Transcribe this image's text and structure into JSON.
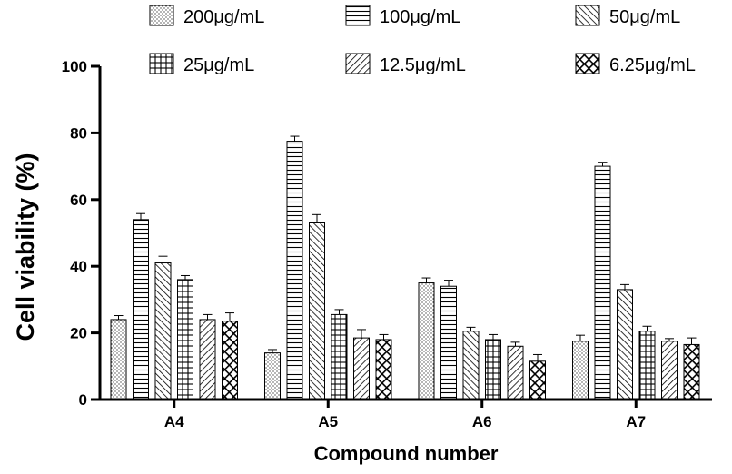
{
  "chart_data": {
    "type": "bar",
    "xlabel": "Compound number",
    "ylabel": "Cell viability (%)",
    "categories": [
      "A4",
      "A5",
      "A6",
      "A7"
    ],
    "ylim": [
      0,
      100
    ],
    "yticks": [
      "0",
      "20",
      "40",
      "60",
      "80",
      "100"
    ],
    "legend_position": "top",
    "series": [
      {
        "name": "200μg/mL",
        "pattern": "dots",
        "values": [
          24,
          14,
          35,
          17.5
        ],
        "errors": [
          1.2,
          1,
          1.5,
          1.8
        ]
      },
      {
        "name": "100μg/mL",
        "pattern": "hlines",
        "values": [
          54,
          77.5,
          34,
          70
        ],
        "errors": [
          1.8,
          1.5,
          1.8,
          1.2
        ]
      },
      {
        "name": "50μg/mL",
        "pattern": "diagonal",
        "values": [
          41,
          53,
          20.5,
          33
        ],
        "errors": [
          2,
          2.5,
          1.2,
          1.5
        ]
      },
      {
        "name": "25μg/mL",
        "pattern": "grid",
        "values": [
          36,
          25.5,
          18,
          20.5
        ],
        "errors": [
          1.2,
          1.5,
          1.5,
          1.5
        ]
      },
      {
        "name": "12.5μg/mL",
        "pattern": "backdiagonal",
        "values": [
          24,
          18.5,
          16,
          17.5
        ],
        "errors": [
          1.5,
          2.5,
          1.2,
          0.8
        ]
      },
      {
        "name": "6.25μg/mL",
        "pattern": "crosshatch",
        "values": [
          23.5,
          18,
          11.5,
          16.5
        ],
        "errors": [
          2.5,
          1.5,
          2,
          2
        ]
      }
    ]
  }
}
